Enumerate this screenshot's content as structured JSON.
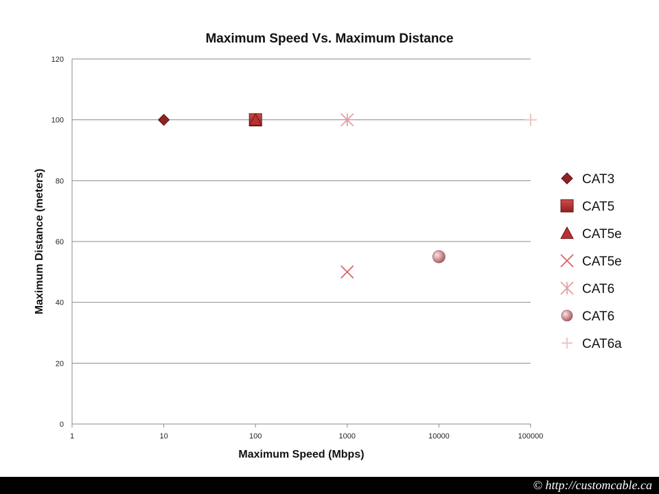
{
  "chart_data": {
    "type": "scatter",
    "title": "Maximum Speed Vs. Maximum Distance",
    "xlabel": "Maximum Speed (Mbps)",
    "ylabel": "Maximum Distance (meters)",
    "x_scale": "log",
    "xlim": [
      1,
      100000
    ],
    "ylim": [
      0,
      120
    ],
    "x_ticks": [
      "1",
      "10",
      "100",
      "1000",
      "10000",
      "100000"
    ],
    "y_ticks": [
      "0",
      "20",
      "40",
      "60",
      "80",
      "100",
      "120"
    ],
    "y_tick_values": [
      0,
      20,
      40,
      60,
      80,
      100,
      120
    ],
    "x_tick_values": [
      1,
      10,
      100,
      1000,
      10000,
      100000
    ],
    "grid": "horizontal",
    "legend_position": "right",
    "series": [
      {
        "name": "CAT3",
        "marker": "diamond",
        "color": "#8e2424",
        "points": [
          [
            10,
            100
          ]
        ]
      },
      {
        "name": "CAT5",
        "marker": "square",
        "color": "#b03030",
        "points": [
          [
            100,
            100
          ]
        ]
      },
      {
        "name": "CAT5e",
        "marker": "triangle",
        "color": "#b83232",
        "points": [
          [
            100,
            100
          ]
        ]
      },
      {
        "name": "CAT5e",
        "marker": "x",
        "color": "#d9646a",
        "points": [
          [
            1000,
            50
          ]
        ]
      },
      {
        "name": "CAT6",
        "marker": "asterisk",
        "color": "#e2a0a4",
        "points": [
          [
            1000,
            100
          ]
        ]
      },
      {
        "name": "CAT6",
        "marker": "sphere",
        "color": "#c98288",
        "points": [
          [
            10000,
            55
          ]
        ]
      },
      {
        "name": "CAT6a",
        "marker": "plus",
        "color": "#edc4c6",
        "points": [
          [
            100000,
            100
          ]
        ]
      }
    ]
  },
  "footer": {
    "text": "© http://customcable.ca"
  }
}
